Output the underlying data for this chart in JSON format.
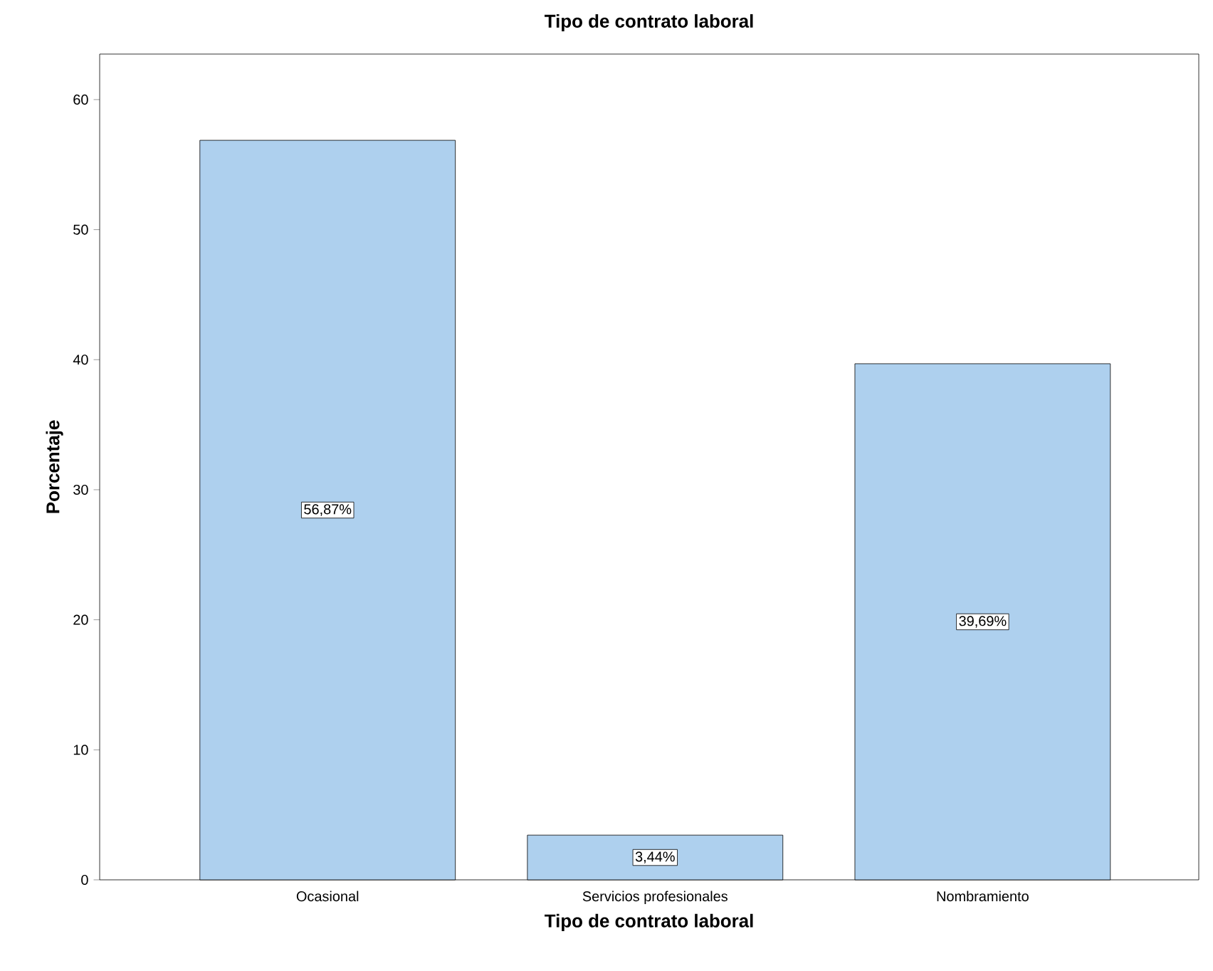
{
  "chart_data": {
    "type": "bar",
    "title": "Tipo de contrato laboral",
    "xlabel": "Tipo de contrato laboral",
    "ylabel": "Porcentaje",
    "categories": [
      "Ocasional",
      "Servicios profesionales",
      "Nombramiento"
    ],
    "values": [
      56.87,
      3.44,
      39.69
    ],
    "value_labels": [
      "56,87%",
      "3,44%",
      "39,69%"
    ],
    "color": "#aed0ee",
    "ylim": [
      0,
      63.5
    ],
    "yticks": [
      0,
      10,
      20,
      30,
      40,
      50,
      60
    ],
    "grid": false
  }
}
